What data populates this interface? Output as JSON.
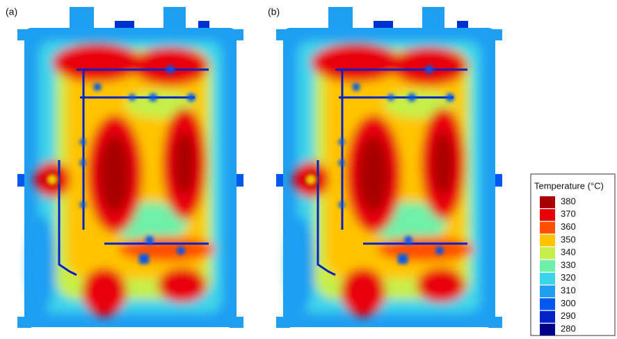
{
  "panels": [
    {
      "label": "(a)"
    },
    {
      "label": "(b)"
    }
  ],
  "legend": {
    "title": "Temperature (°C)",
    "levels": [
      {
        "value": 380,
        "color": "#a80000"
      },
      {
        "value": 370,
        "color": "#e80008"
      },
      {
        "value": 360,
        "color": "#ff5000"
      },
      {
        "value": 350,
        "color": "#ffc400"
      },
      {
        "value": 340,
        "color": "#c6ef4a"
      },
      {
        "value": 330,
        "color": "#6ff0a8"
      },
      {
        "value": 320,
        "color": "#3cd4ea"
      },
      {
        "value": 310,
        "color": "#1e9ff2"
      },
      {
        "value": 300,
        "color": "#0058ee"
      },
      {
        "value": 290,
        "color": "#0022c8"
      },
      {
        "value": 280,
        "color": "#000088"
      }
    ]
  }
}
